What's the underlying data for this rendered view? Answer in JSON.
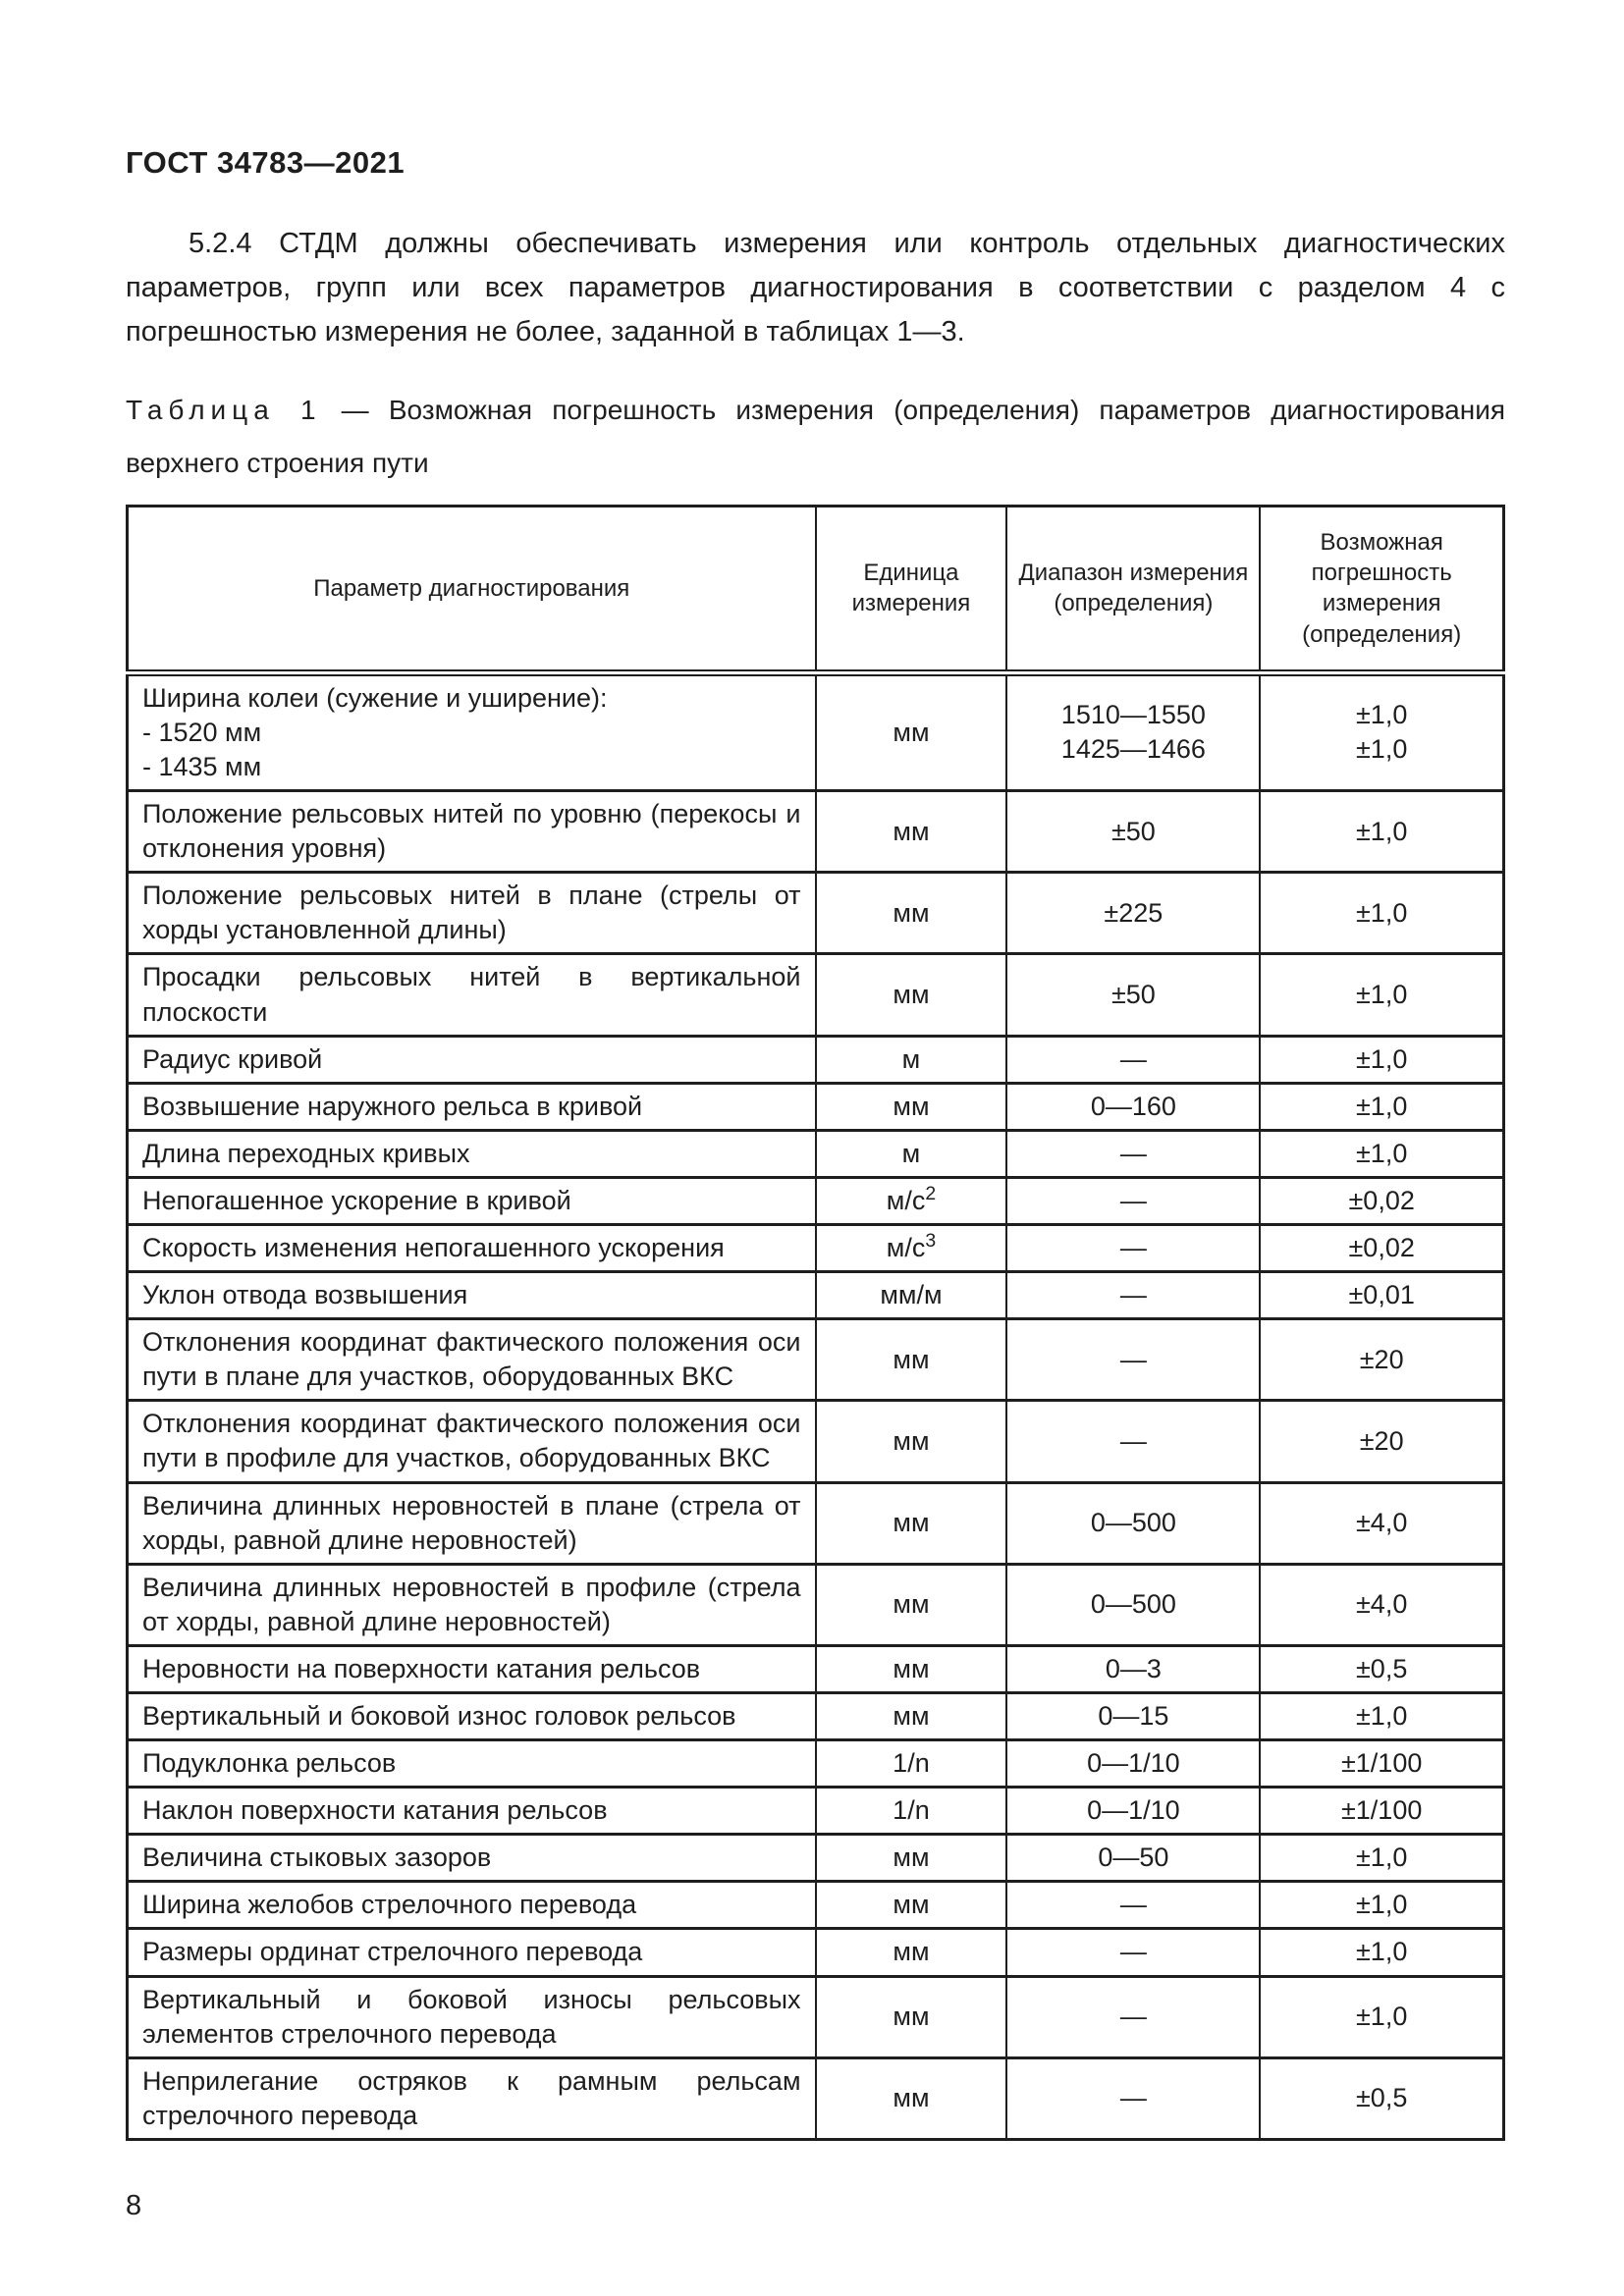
{
  "doc": {
    "header": "ГОСТ 34783—2021",
    "paragraph": "5.2.4  СТДМ должны обеспечивать измерения или контроль отдельных диагностических параметров, групп или всех параметров диагностирования в соответствии с разделом 4 с погрешностью измерения не более, заданной в таблицах 1—3.",
    "caption": {
      "label": "Таблица 1",
      "separator": "—",
      "text": "Возможная погрешность измерения (определения) параметров диагностирования верхнего строения пути"
    },
    "page_number": "8"
  },
  "table": {
    "columns": [
      "Параметр диагностирования",
      "Единица измерения",
      "Диапазон измерения (определения)",
      "Возможная погрешность измерения (определения)"
    ],
    "rows": [
      {
        "param": "Ширина колеи (сужение и уширение):",
        "param_sub": [
          "- 1520 мм",
          "- 1435 мм"
        ],
        "unit": "мм",
        "range": [
          "1510—1550",
          "1425—1466"
        ],
        "error": [
          "±1,0",
          "±1,0"
        ]
      },
      {
        "param": "Положение рельсовых нитей по уровню (перекосы и отклонения уровня)",
        "unit": "мм",
        "range": "±50",
        "error": "±1,0"
      },
      {
        "param": "Положение рельсовых нитей в плане (стрелы от хорды установленной длины)",
        "unit": "мм",
        "range": "±225",
        "error": "±1,0"
      },
      {
        "param": "Просадки рельсовых нитей в вертикальной плоскости",
        "unit": "мм",
        "range": "±50",
        "error": "±1,0"
      },
      {
        "param": "Радиус кривой",
        "unit": "м",
        "range": "—",
        "error": "±1,0"
      },
      {
        "param": "Возвышение наружного рельса в кривой",
        "unit": "мм",
        "range": "0—160",
        "error": "±1,0"
      },
      {
        "param": "Длина переходных кривых",
        "unit": "м",
        "range": "—",
        "error": "±1,0"
      },
      {
        "param": "Непогашенное ускорение в кривой",
        "unit": "м/с",
        "unit_sup": "2",
        "range": "—",
        "error": "±0,02"
      },
      {
        "param": "Скорость изменения непогашенного ускорения",
        "unit": "м/с",
        "unit_sup": "3",
        "range": "—",
        "error": "±0,02"
      },
      {
        "param": "Уклон отвода возвышения",
        "unit": "мм/м",
        "range": "—",
        "error": "±0,01"
      },
      {
        "param": "Отклонения координат фактического положения оси пути в плане для участков, оборудованных ВКС",
        "unit": "мм",
        "range": "—",
        "error": "±20"
      },
      {
        "param": "Отклонения координат фактического положения оси пути в профиле для участков, оборудованных ВКС",
        "unit": "мм",
        "range": "—",
        "error": "±20"
      },
      {
        "param": "Величина длинных неровностей в плане (стрела от хорды, равной длине неровностей)",
        "unit": "мм",
        "range": "0—500",
        "error": "±4,0"
      },
      {
        "param": "Величина длинных неровностей в профиле (стрела от хорды, равной длине неровностей)",
        "unit": "мм",
        "range": "0—500",
        "error": "±4,0"
      },
      {
        "param": "Неровности на поверхности катания рельсов",
        "unit": "мм",
        "range": "0—3",
        "error": "±0,5"
      },
      {
        "param": "Вертикальный и боковой износ головок рельсов",
        "unit": "мм",
        "range": "0—15",
        "error": "±1,0"
      },
      {
        "param": "Подуклонка рельсов",
        "unit": "1/n",
        "range": "0—1/10",
        "error": "±1/100"
      },
      {
        "param": "Наклон поверхности катания рельсов",
        "unit": "1/n",
        "range": "0—1/10",
        "error": "±1/100"
      },
      {
        "param": "Величина стыковых зазоров",
        "unit": "мм",
        "range": "0—50",
        "error": "±1,0"
      },
      {
        "param": "Ширина желобов стрелочного перевода",
        "unit": "мм",
        "range": "—",
        "error": "±1,0"
      },
      {
        "param": "Размеры ординат стрелочного перевода",
        "unit": "мм",
        "range": "—",
        "error": "±1,0"
      },
      {
        "param": "Вертикальный и боковой износы рельсовых элементов стрелочного перевода",
        "unit": "мм",
        "range": "—",
        "error": "±1,0"
      },
      {
        "param": "Неприлегание остряков к рамным рельсам стрелочного перевода",
        "unit": "мм",
        "range": "—",
        "error": "±0,5"
      }
    ]
  }
}
